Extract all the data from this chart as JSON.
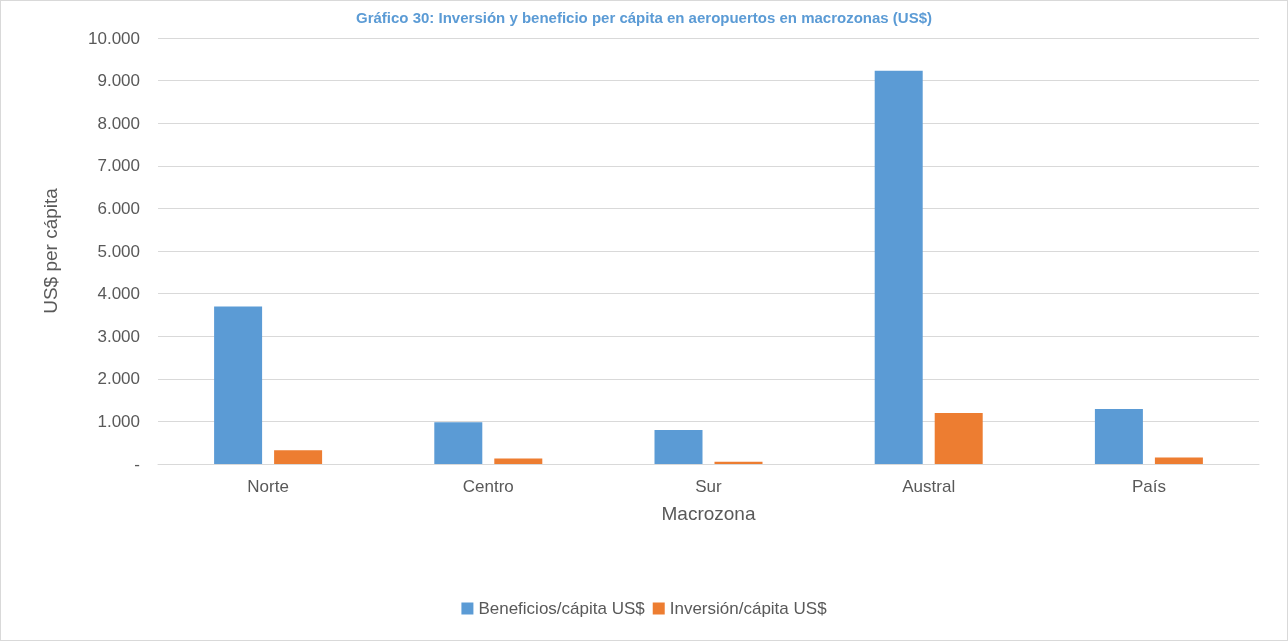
{
  "chart_data": {
    "type": "bar",
    "title": "Gráfico 30: Inversión y beneficio per cápita en aeropuertos en macrozonas (US$)",
    "xlabel": "Macrozona",
    "ylabel": "US$ per cápita",
    "categories": [
      "Norte",
      "Centro",
      "Sur",
      "Austral",
      "País"
    ],
    "series": [
      {
        "name": "Beneficios/cápita US$",
        "color": "#5b9bd5",
        "values": [
          3700,
          980,
          800,
          9230,
          1290
        ]
      },
      {
        "name": "Inversión/cápita US$",
        "color": "#ed7d31",
        "values": [
          320,
          130,
          50,
          1200,
          150
        ]
      }
    ],
    "ylim": [
      0,
      10000
    ],
    "yticks": [
      {
        "value": 0,
        "label": "-"
      },
      {
        "value": 1000,
        "label": "1.000"
      },
      {
        "value": 2000,
        "label": "2.000"
      },
      {
        "value": 3000,
        "label": "3.000"
      },
      {
        "value": 4000,
        "label": "4.000"
      },
      {
        "value": 5000,
        "label": "5.000"
      },
      {
        "value": 6000,
        "label": "6.000"
      },
      {
        "value": 7000,
        "label": "7.000"
      },
      {
        "value": 8000,
        "label": "8.000"
      },
      {
        "value": 9000,
        "label": "9.000"
      },
      {
        "value": 10000,
        "label": "10.000"
      }
    ],
    "grid": "y",
    "legend": "bottom"
  }
}
